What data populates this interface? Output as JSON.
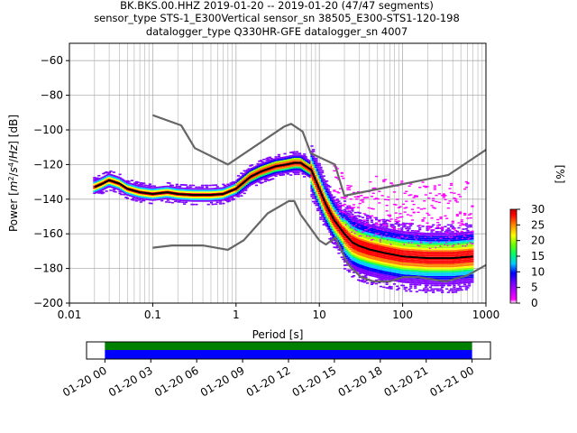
{
  "title_lines": [
    "BK.BKS.00.HHZ   2019-01-20 -- 2019-01-20  (47/47 segments)",
    "sensor_type STS-1_E300Vertical sensor_sn 38505_E300-STS1-120-198",
    "datalogger_type Q330HR-GFE datalogger_sn 4007"
  ],
  "chart_data": [
    {
      "type": "heatmap",
      "title": "BK.BKS.00.HHZ   2019-01-20 -- 2019-01-20  (47/47 segments)",
      "xlabel": "Period [s]",
      "ylabel": "Power [m²/s⁴/Hz] [dB]",
      "xscale": "log",
      "xlim": [
        0.01,
        1000
      ],
      "ylim": [
        -200,
        -50
      ],
      "xticks": [
        "0.01",
        "0.1",
        "1",
        "10",
        "100",
        "1000"
      ],
      "yticks": [
        "−60",
        "−80",
        "−100",
        "−120",
        "−140",
        "−160",
        "−180",
        "−200"
      ],
      "grid": true,
      "colorbar": {
        "label": "[%]",
        "ticks": [
          "0",
          "5",
          "10",
          "15",
          "20",
          "25",
          "30"
        ],
        "range": [
          0,
          30
        ]
      },
      "series": [
        {
          "name": "",
          "role": "mean",
          "color": "#000000",
          "points": [
            [
              0.02,
              -133
            ],
            [
              0.025,
              -131
            ],
            [
              0.03,
              -129
            ],
            [
              0.04,
              -131
            ],
            [
              0.05,
              -134
            ],
            [
              0.07,
              -136
            ],
            [
              0.1,
              -137
            ],
            [
              0.15,
              -136
            ],
            [
              0.2,
              -137
            ],
            [
              0.3,
              -137.5
            ],
            [
              0.5,
              -137.5
            ],
            [
              0.7,
              -137
            ],
            [
              1,
              -134
            ],
            [
              1.5,
              -127
            ],
            [
              2,
              -124
            ],
            [
              3,
              -121
            ],
            [
              4,
              -120
            ],
            [
              5,
              -119
            ],
            [
              6,
              -119
            ],
            [
              8,
              -123
            ],
            [
              10,
              -134
            ],
            [
              12,
              -143
            ],
            [
              15,
              -152
            ],
            [
              20,
              -160
            ],
            [
              25,
              -165
            ],
            [
              30,
              -167
            ],
            [
              40,
              -169
            ],
            [
              60,
              -171
            ],
            [
              100,
              -173
            ],
            [
              200,
              -174
            ],
            [
              400,
              -174
            ],
            [
              700,
              -173
            ]
          ]
        },
        {
          "name": "",
          "role": "noise-model-high",
          "color": "#666666",
          "points": [
            [
              0.1,
              -91.5
            ],
            [
              0.22,
              -97.4
            ],
            [
              0.32,
              -110.5
            ],
            [
              0.8,
              -120
            ],
            [
              3.8,
              -98
            ],
            [
              4.6,
              -96.5
            ],
            [
              6.3,
              -101
            ],
            [
              7.9,
              -113.5
            ],
            [
              15.4,
              -120
            ],
            [
              20,
              -138
            ],
            [
              354.8,
              -126
            ],
            [
              1000,
              -111.5
            ]
          ]
        },
        {
          "name": "",
          "role": "noise-model-low",
          "color": "#666666",
          "points": [
            [
              0.1,
              -168
            ],
            [
              0.17,
              -166.7
            ],
            [
              0.4,
              -166.7
            ],
            [
              0.8,
              -169.2
            ],
            [
              1.24,
              -163.7
            ],
            [
              2.4,
              -148.2
            ],
            [
              4.3,
              -141.1
            ],
            [
              5,
              -141.1
            ],
            [
              6,
              -149
            ],
            [
              10,
              -163.8
            ],
            [
              12,
              -166.2
            ],
            [
              15.6,
              -162.1
            ],
            [
              21.9,
              -177.5
            ],
            [
              31.6,
              -185
            ],
            [
              45,
              -187.5
            ],
            [
              70,
              -187.5
            ],
            [
              101,
              -185
            ],
            [
              154,
              -185
            ],
            [
              328,
              -187.5
            ],
            [
              600,
              -184
            ],
            [
              1000,
              -178
            ]
          ]
        }
      ]
    },
    {
      "type": "area",
      "title": "",
      "xlabel": "",
      "ylabel": "",
      "xticks": [
        "01-20 00",
        "01-20 03",
        "01-20 06",
        "01-20 09",
        "01-20 12",
        "01-20 15",
        "01-20 18",
        "01-20 21",
        "01-21 00"
      ],
      "xrange_hours": [
        -1.2,
        25.2
      ],
      "bands": [
        {
          "name": "",
          "color": "#008000",
          "start_hour": 0,
          "end_hour": 24
        },
        {
          "name": "",
          "color": "#0000ff",
          "start_hour": 0,
          "end_hour": 24
        }
      ]
    }
  ]
}
